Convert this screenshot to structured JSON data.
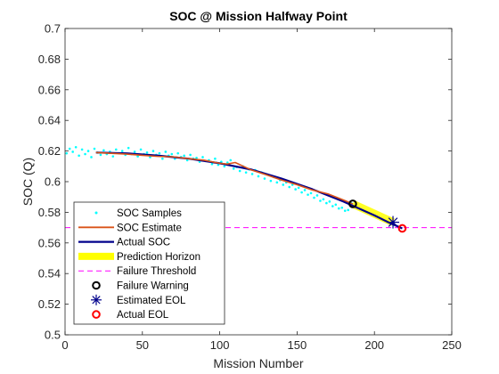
{
  "chart_data": {
    "type": "line",
    "title": "SOC @ Mission Halfway Point",
    "xlabel": "Mission Number",
    "ylabel": "SOC (Q)",
    "xlim": [
      0,
      250
    ],
    "ylim": [
      0.5,
      0.7
    ],
    "xticks": [
      0,
      50,
      100,
      150,
      200,
      250
    ],
    "yticks": [
      0.5,
      0.52,
      0.54,
      0.56,
      0.58,
      0.6,
      0.62,
      0.64,
      0.66,
      0.68,
      0.7
    ],
    "ytick_labels": [
      "0.5",
      "0.52",
      "0.54",
      "0.56",
      "0.58",
      "0.6",
      "0.62",
      "0.64",
      "0.66",
      "0.68",
      "0.7"
    ],
    "grid": false,
    "legend_position": "bottom-left",
    "series": [
      {
        "name": "SOC Samples",
        "kind": "scatter",
        "color": "#00ffff",
        "x": [
          1,
          3,
          5,
          7,
          9,
          11,
          13,
          15,
          17,
          19,
          21,
          23,
          25,
          27,
          29,
          31,
          33,
          35,
          37,
          39,
          41,
          43,
          45,
          47,
          49,
          51,
          53,
          55,
          57,
          59,
          61,
          63,
          65,
          67,
          69,
          71,
          73,
          75,
          77,
          79,
          81,
          83,
          85,
          87,
          89,
          91,
          93,
          95,
          97,
          99,
          101,
          103,
          105,
          107,
          109,
          111,
          113,
          115,
          117,
          119,
          121,
          123,
          125,
          127,
          129,
          131,
          133,
          135,
          137,
          139,
          141,
          143,
          145,
          147,
          149,
          151,
          153,
          155,
          157,
          159,
          161,
          163,
          165,
          167,
          169,
          171,
          173,
          175,
          177,
          179,
          181,
          183,
          185
        ],
        "y": [
          0.6185,
          0.6215,
          0.6195,
          0.6225,
          0.617,
          0.621,
          0.618,
          0.62,
          0.616,
          0.6215,
          0.619,
          0.6175,
          0.6205,
          0.618,
          0.6195,
          0.6165,
          0.621,
          0.6185,
          0.62,
          0.6175,
          0.622,
          0.618,
          0.6195,
          0.6165,
          0.621,
          0.618,
          0.619,
          0.616,
          0.62,
          0.6175,
          0.6185,
          0.615,
          0.6195,
          0.617,
          0.618,
          0.615,
          0.6185,
          0.616,
          0.617,
          0.614,
          0.6175,
          0.615,
          0.6155,
          0.613,
          0.616,
          0.6135,
          0.614,
          0.6115,
          0.615,
          0.611,
          0.613,
          0.61,
          0.6125,
          0.614,
          0.6085,
          0.6095,
          0.607,
          0.61,
          0.606,
          0.608,
          0.605,
          0.6075,
          0.6035,
          0.606,
          0.602,
          0.6045,
          0.6005,
          0.603,
          0.5995,
          0.601,
          0.598,
          0.5995,
          0.5965,
          0.598,
          0.595,
          0.596,
          0.593,
          0.5945,
          0.5915,
          0.5925,
          0.5895,
          0.591,
          0.5875,
          0.5885,
          0.586,
          0.587,
          0.584,
          0.585,
          0.5825,
          0.583,
          0.581,
          0.5815,
          0.586
        ]
      },
      {
        "name": "SOC Estimate",
        "kind": "line",
        "color": "#d95319",
        "x": [
          20,
          30,
          40,
          50,
          60,
          70,
          80,
          90,
          100,
          105,
          110,
          120,
          130,
          140,
          150,
          160,
          170,
          180,
          186
        ],
        "y": [
          0.619,
          0.6185,
          0.618,
          0.6172,
          0.6165,
          0.6162,
          0.615,
          0.614,
          0.612,
          0.6115,
          0.6125,
          0.6078,
          0.6045,
          0.601,
          0.598,
          0.5945,
          0.592,
          0.588,
          0.5855
        ]
      },
      {
        "name": "Actual SOC",
        "kind": "line",
        "color": "#00008b",
        "x": [
          20,
          40,
          60,
          80,
          100,
          110,
          120,
          140,
          160,
          180,
          200,
          210,
          218
        ],
        "y": [
          0.619,
          0.6185,
          0.617,
          0.615,
          0.612,
          0.61,
          0.608,
          0.602,
          0.595,
          0.587,
          0.578,
          0.573,
          0.5695
        ]
      },
      {
        "name": "Prediction Horizon",
        "kind": "band",
        "color": "#ffff00",
        "x": [
          186,
          212
        ],
        "y": [
          0.5855,
          0.5735
        ]
      },
      {
        "name": "Failure Threshold",
        "kind": "hline",
        "color": "#ff00ff",
        "y": 0.57
      },
      {
        "name": "Failure Warning",
        "kind": "marker",
        "marker": "circle",
        "color": "#000000",
        "x": 186,
        "y": 0.5855
      },
      {
        "name": "Estimated EOL",
        "kind": "marker",
        "marker": "asterisk",
        "color": "#00008b",
        "x": 212,
        "y": 0.5735
      },
      {
        "name": "Actual EOL",
        "kind": "marker",
        "marker": "circle",
        "color": "#ff0000",
        "x": 218,
        "y": 0.5695
      }
    ]
  }
}
